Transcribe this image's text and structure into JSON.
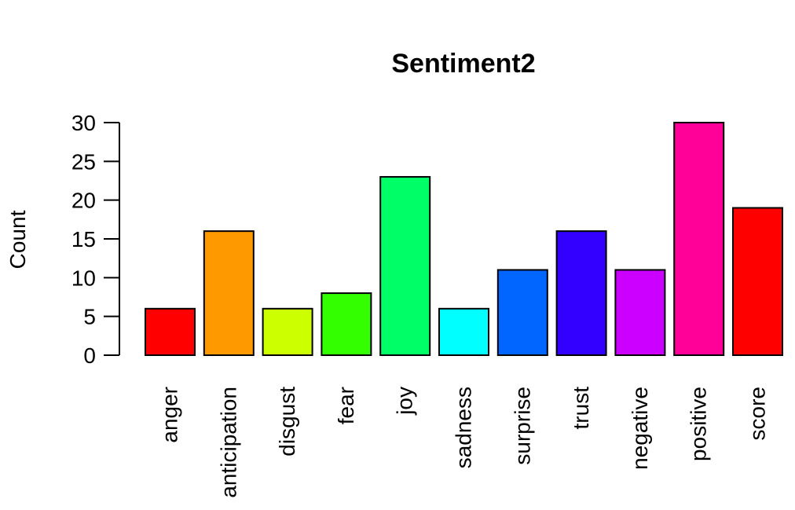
{
  "chart_data": {
    "type": "bar",
    "title": "Sentiment2",
    "ylabel": "Count",
    "xlabel": "",
    "categories": [
      "anger",
      "anticipation",
      "disgust",
      "fear",
      "joy",
      "sadness",
      "surprise",
      "trust",
      "negative",
      "positive",
      "score"
    ],
    "values": [
      6,
      16,
      6,
      8,
      23,
      6,
      11,
      16,
      11,
      30,
      19
    ],
    "colors": [
      "#FF0000",
      "#FF9900",
      "#CCFF00",
      "#33FF00",
      "#00FF66",
      "#00FFFF",
      "#0066FF",
      "#3300FF",
      "#CC00FF",
      "#FF0099",
      "#FF0000"
    ],
    "yticks": [
      0,
      5,
      10,
      15,
      20,
      25,
      30
    ],
    "ylim": [
      0,
      30
    ],
    "grid": false,
    "legend": "none"
  }
}
